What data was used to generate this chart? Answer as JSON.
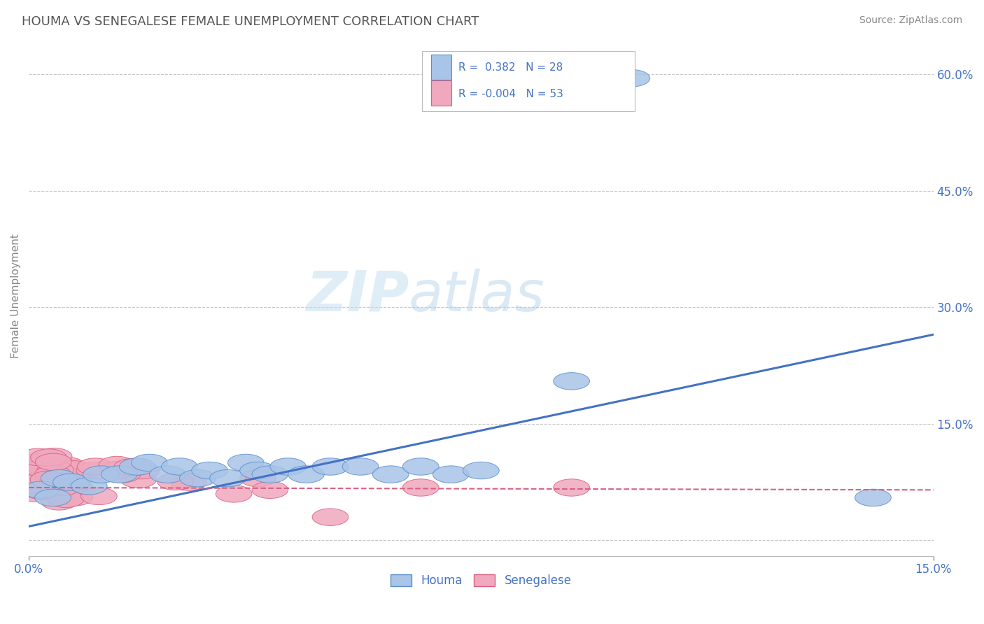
{
  "title": "HOUMA VS SENEGALESE FEMALE UNEMPLOYMENT CORRELATION CHART",
  "source_text": "Source: ZipAtlas.com",
  "ylabel": "Female Unemployment",
  "xlim": [
    0.0,
    0.15
  ],
  "ylim": [
    -0.02,
    0.65
  ],
  "ytick_values": [
    0.0,
    0.15,
    0.3,
    0.45,
    0.6
  ],
  "houma_R": "0.382",
  "houma_N": "28",
  "senegalese_R": "-0.004",
  "senegalese_N": "53",
  "houma_color": "#a8c4e8",
  "senegalese_color": "#f0a8be",
  "houma_edge_color": "#5b8fc9",
  "senegalese_edge_color": "#d96080",
  "houma_line_color": "#4472c4",
  "senegalese_line_color": "#d96080",
  "text_color": "#4472c4",
  "title_color": "#555555",
  "grid_color": "#c8c8c8",
  "watermark_zip_color": "#c8dff0",
  "watermark_atlas_color": "#b8d8e8",
  "houma_trendline_x": [
    0.0,
    0.15
  ],
  "houma_trendline_y": [
    0.018,
    0.265
  ],
  "senegalese_trendline_x": [
    0.0,
    0.15
  ],
  "senegalese_trendline_y": [
    0.068,
    0.065
  ]
}
